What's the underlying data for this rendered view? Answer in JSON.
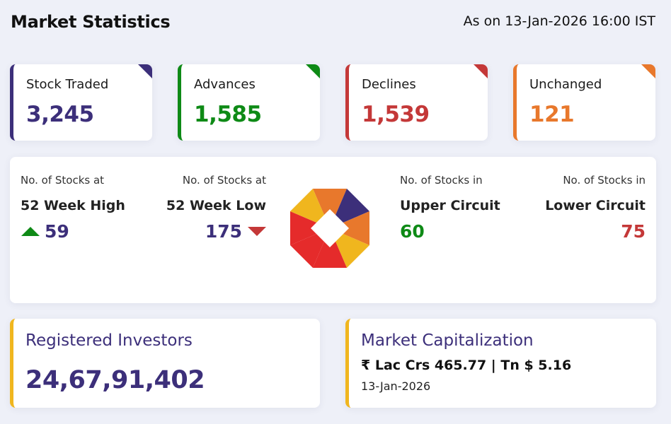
{
  "header": {
    "title": "Market Statistics",
    "as_of": "As on 13-Jan-2026 16:00 IST"
  },
  "stats": {
    "traded": {
      "label": "Stock Traded",
      "value": "3,245",
      "color": "#3c2f7a"
    },
    "advances": {
      "label": "Advances",
      "value": "1,585",
      "color": "#0e8a16"
    },
    "declines": {
      "label": "Declines",
      "value": "1,539",
      "color": "#c43838"
    },
    "unchanged": {
      "label": "Unchanged",
      "value": "121",
      "color": "#e8782c"
    }
  },
  "extremes": {
    "high52": {
      "caption": "No. of Stocks at",
      "label": "52 Week High",
      "value": "59",
      "icon": "arrow-up-icon"
    },
    "low52": {
      "caption": "No. of Stocks at",
      "label": "52 Week Low",
      "value": "175",
      "icon": "arrow-down-icon"
    },
    "upper_circuit": {
      "caption": "No. of Stocks in",
      "label": "Upper Circuit",
      "value": "60"
    },
    "lower_circuit": {
      "caption": "No. of Stocks in",
      "label": "Lower Circuit",
      "value": "75"
    },
    "logo_icon": "nse-logo-icon"
  },
  "investors": {
    "title": "Registered Investors",
    "value": "24,67,91,402"
  },
  "market_cap": {
    "title": "Market Capitalization",
    "value": "₹ Lac Crs 465.77 | Tn $ 5.16",
    "date": "13-Jan-2026"
  },
  "colors": {
    "navy": "#3c2f7a",
    "green": "#0e8a16",
    "red": "#c43838",
    "orange": "#e8782c",
    "yellow": "#f0b61e"
  }
}
